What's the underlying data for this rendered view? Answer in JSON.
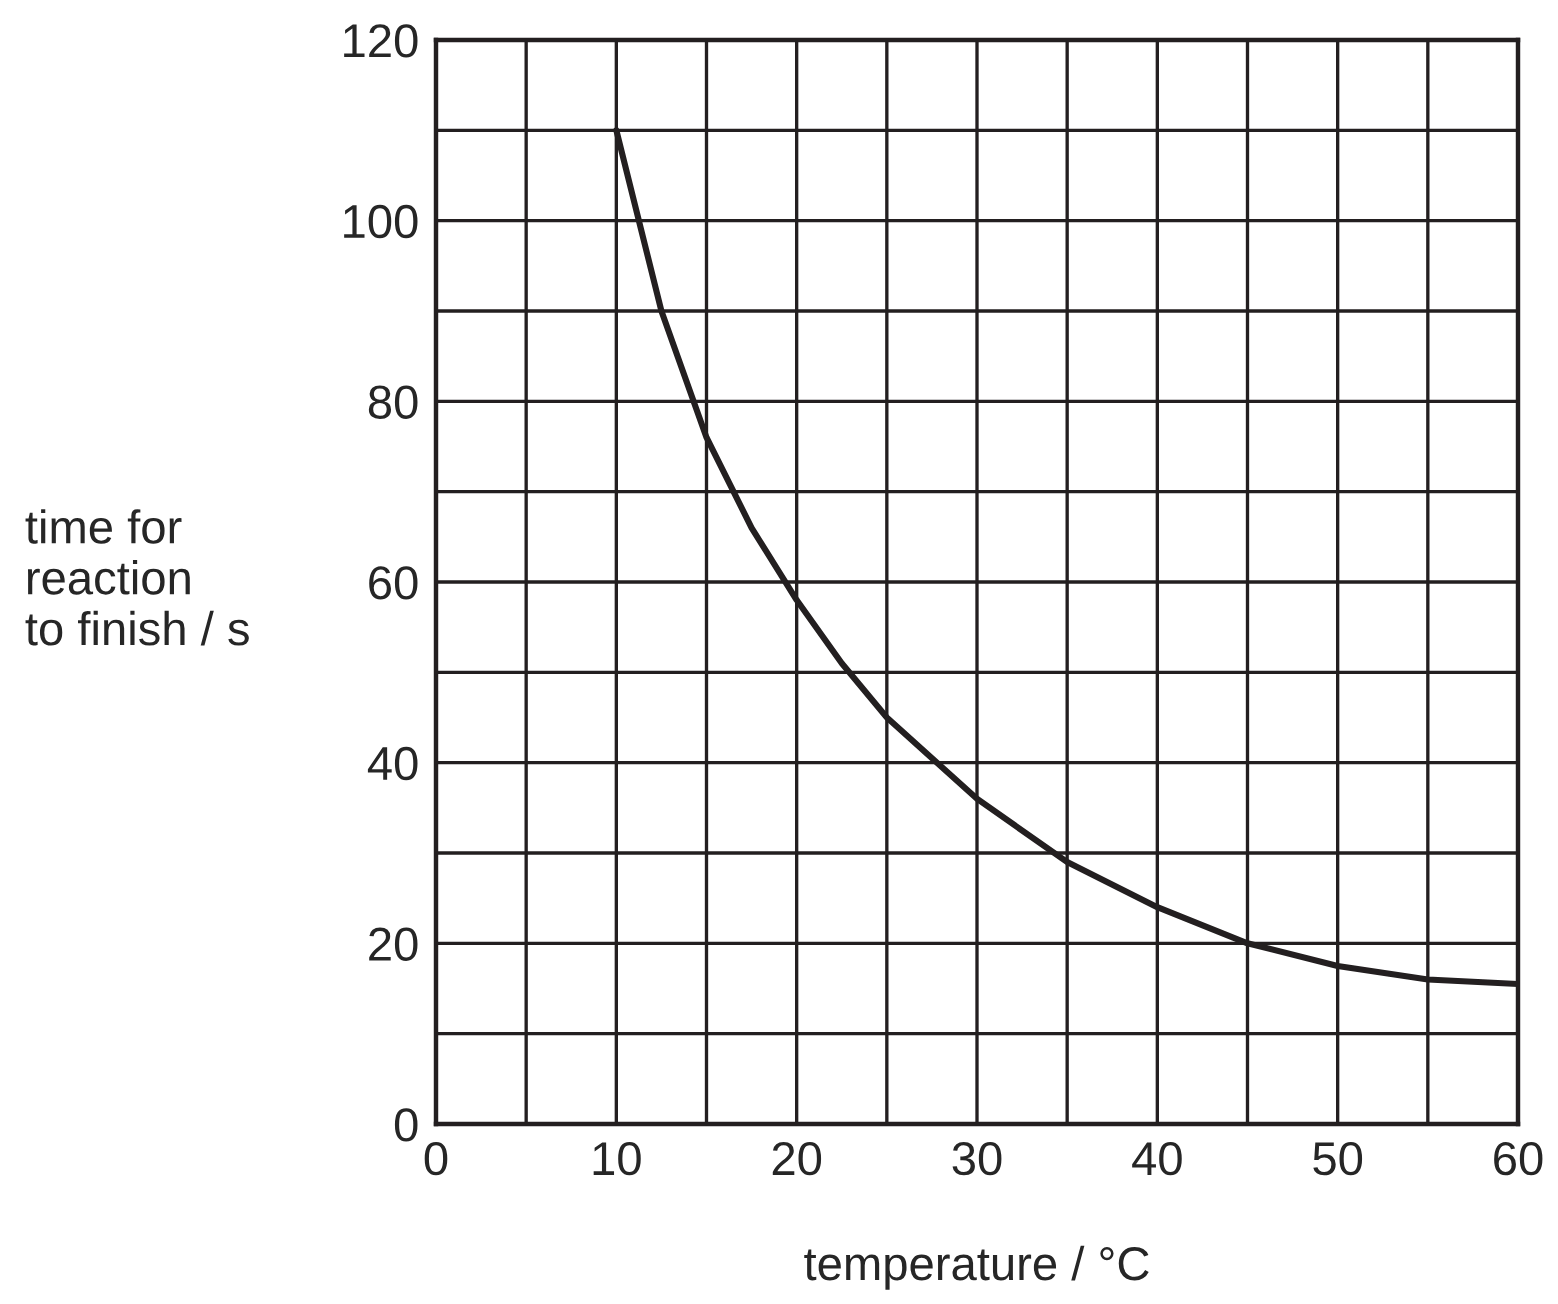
{
  "chart_data": {
    "type": "line",
    "xlabel": "temperature / °C",
    "ylabel": "time for\nreaction\nto finish / s",
    "x": [
      10,
      12.5,
      15,
      17.5,
      20,
      22.5,
      25,
      30,
      35,
      40,
      45,
      50,
      55,
      60
    ],
    "series": [
      {
        "color": "#231f20",
        "values": [
          110,
          90,
          76,
          66,
          58,
          51,
          45,
          36,
          29,
          24,
          20,
          17.5,
          16,
          15.5
        ]
      }
    ],
    "xlim": [
      0,
      60
    ],
    "ylim": [
      0,
      120
    ],
    "xticks": [
      0,
      {
        "value": 5,
        "label": null
      },
      10,
      {
        "value": 15,
        "label": null
      },
      20,
      {
        "value": 25,
        "label": null
      },
      30,
      {
        "value": 35,
        "label": null
      },
      40,
      {
        "value": 45,
        "label": null
      },
      50,
      {
        "value": 55,
        "label": null
      },
      60
    ],
    "yticks": [
      0,
      {
        "value": 10,
        "label": null
      },
      20,
      {
        "value": 30,
        "label": null
      },
      40,
      {
        "value": 50,
        "label": null
      },
      60,
      {
        "value": 70,
        "label": null
      },
      80,
      {
        "value": 90,
        "label": null
      },
      100,
      {
        "value": 110,
        "label": null
      },
      120
    ],
    "grid": true,
    "marker": "none",
    "line_style": "solid"
  }
}
